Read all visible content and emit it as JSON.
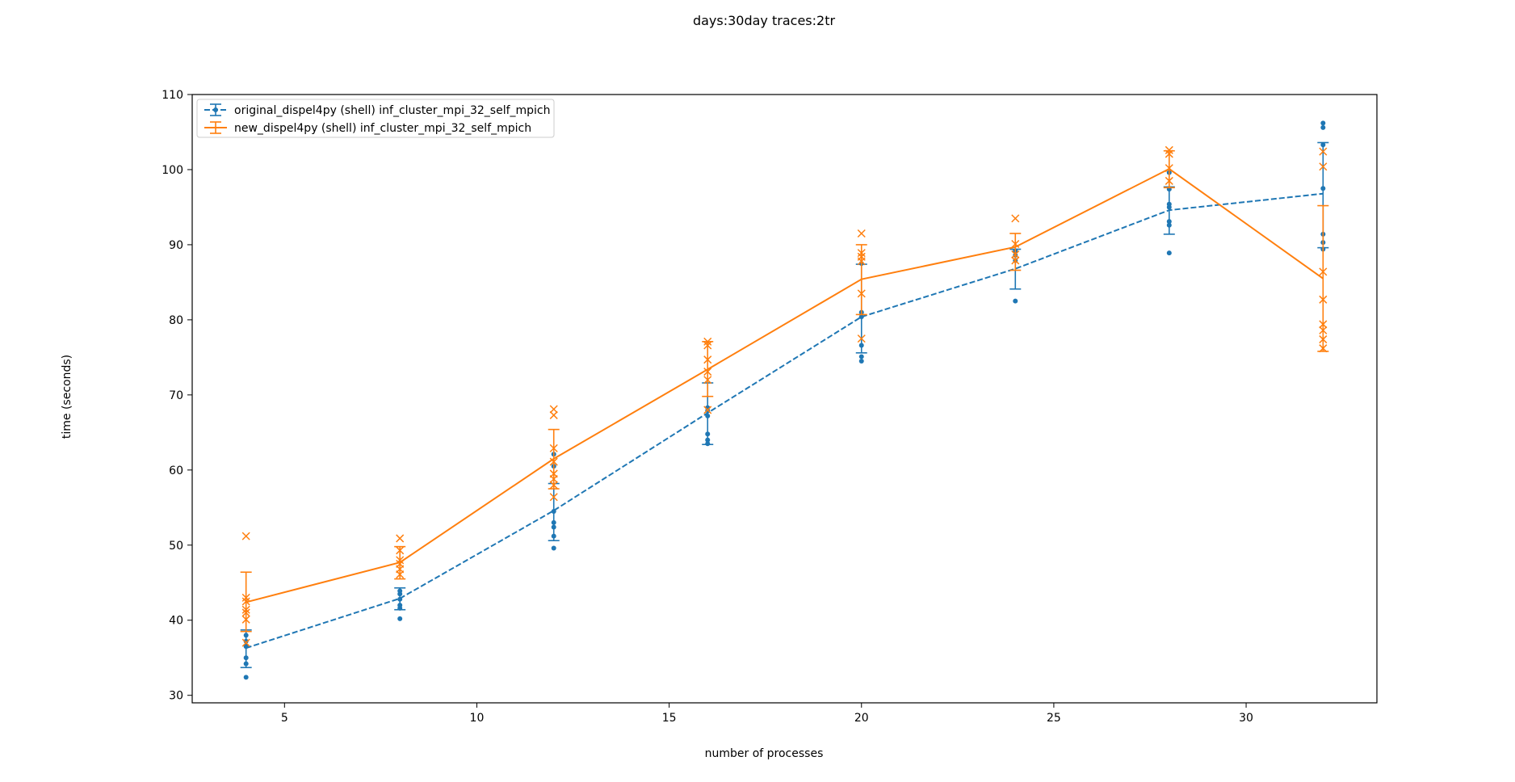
{
  "chart_data": {
    "type": "line",
    "title": "days:30day traces:2tr",
    "xlabel": "number of processes",
    "ylabel": "time (seconds)",
    "xlim": [
      2.6,
      33.4
    ],
    "ylim": [
      29,
      110
    ],
    "xticks": [
      5,
      10,
      15,
      20,
      25,
      30
    ],
    "yticks": [
      30,
      40,
      50,
      60,
      70,
      80,
      90,
      100,
      110
    ],
    "grid": false,
    "legend_position": "top-left",
    "x": [
      4,
      8,
      12,
      16,
      20,
      24,
      28,
      32
    ],
    "series": [
      {
        "name": "original_dispel4py (shell) inf_cluster_mpi_32_self_mpich",
        "color": "#1f77b4",
        "line_style": "dashed",
        "marker": "dot",
        "mean": [
          36.3,
          42.9,
          54.6,
          67.6,
          80.4,
          86.8,
          94.6,
          96.8
        ],
        "err_low": [
          33.7,
          41.4,
          50.6,
          63.4,
          75.6,
          84.1,
          91.4,
          89.6
        ],
        "err_high": [
          38.7,
          44.3,
          58.2,
          71.6,
          87.4,
          89.4,
          97.7,
          103.6
        ],
        "points": [
          [
            32.4,
            34.2,
            35.0,
            36.5,
            37.2,
            38.0
          ],
          [
            40.2,
            41.6,
            42.0,
            42.8,
            43.5,
            43.9
          ],
          [
            49.6,
            51.2,
            52.4,
            53.0,
            54.5,
            60.5,
            62.1
          ],
          [
            63.5,
            64.0,
            64.8,
            67.2,
            67.9,
            68.3
          ],
          [
            74.5,
            75.1,
            76.6,
            80.4,
            81.0,
            87.5
          ],
          [
            82.5,
            87.9,
            88.6,
            89.2
          ],
          [
            88.9,
            92.6,
            93.1,
            95.0,
            95.4,
            97.4,
            99.6
          ],
          [
            89.4,
            90.3,
            91.4,
            97.5,
            103.3,
            105.6,
            106.2
          ]
        ]
      },
      {
        "name": "new_dispel4py (shell) inf_cluster_mpi_32_self_mpich",
        "color": "#ff7f0e",
        "line_style": "solid",
        "marker": "x",
        "mean": [
          42.4,
          47.7,
          61.5,
          73.4,
          85.4,
          89.7,
          100.1,
          85.5
        ],
        "err_low": [
          38.5,
          45.5,
          57.5,
          69.8,
          80.7,
          86.6,
          97.6,
          75.8
        ],
        "err_high": [
          46.4,
          49.8,
          65.4,
          77.1,
          90.0,
          91.5,
          102.5,
          95.2
        ],
        "points": [
          [
            37.0,
            40.1,
            41.0,
            41.4,
            42.5,
            43.0,
            51.2
          ],
          [
            46.1,
            46.8,
            47.5,
            48.0,
            49.3,
            50.9
          ],
          [
            56.4,
            58.0,
            58.8,
            59.5,
            61.1,
            62.9,
            67.3,
            68.1
          ],
          [
            68.0,
            72.0,
            73.1,
            74.7,
            76.6,
            77.1
          ],
          [
            77.5,
            83.5,
            87.8,
            88.4,
            88.9,
            91.5
          ],
          [
            87.9,
            88.7,
            90.1,
            93.5
          ],
          [
            98.5,
            100.2,
            102.1,
            102.6
          ],
          [
            76.2,
            77.4,
            78.6,
            79.4,
            82.7,
            86.4,
            100.4,
            102.4
          ]
        ]
      }
    ]
  }
}
